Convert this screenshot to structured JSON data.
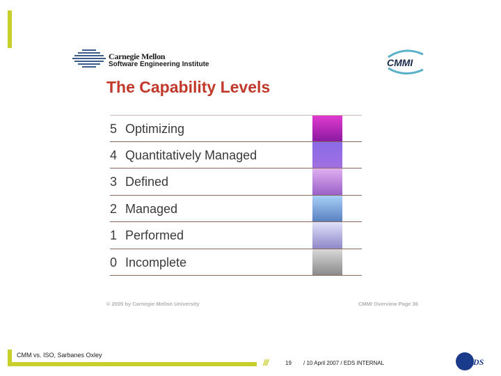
{
  "header": {
    "org_line1": "Carnegie Mellon",
    "org_line2": "Software Engineering Institute",
    "cmmi_logo": "CMMI"
  },
  "slide": {
    "title": "The Capability Levels",
    "levels": [
      {
        "number": "5",
        "label": "Optimizing",
        "color_top": "#e03ad0",
        "color_bottom": "#8a1aa0"
      },
      {
        "number": "4",
        "label": "Quantitatively Managed",
        "color_top": "#8a6ae8",
        "color_bottom": "#a070e0"
      },
      {
        "number": "3",
        "label": "Defined",
        "color_top": "#e0b0f0",
        "color_bottom": "#9a60c8"
      },
      {
        "number": "2",
        "label": "Managed",
        "color_top": "#a8d0f8",
        "color_bottom": "#5a80c0"
      },
      {
        "number": "1",
        "label": "Performed",
        "color_top": "#e0e0fa",
        "color_bottom": "#9088c8"
      },
      {
        "number": "0",
        "label": "Incomplete",
        "color_top": "#d8d8d8",
        "color_bottom": "#8a8a8a"
      }
    ],
    "copyright": "© 2005 by Carnegie Mellon University",
    "page_ref": "CMMI Overview Page 36"
  },
  "footer": {
    "title": "CMM vs. ISO, Sarbanes  Oxley",
    "slashes": "///",
    "page_number": "19",
    "date_text": "/  10 April 2007 /  EDS INTERNAL",
    "eds_logo": "EDS"
  },
  "colors": {
    "accent": "#c8cf2a",
    "title": "#c0392b"
  }
}
